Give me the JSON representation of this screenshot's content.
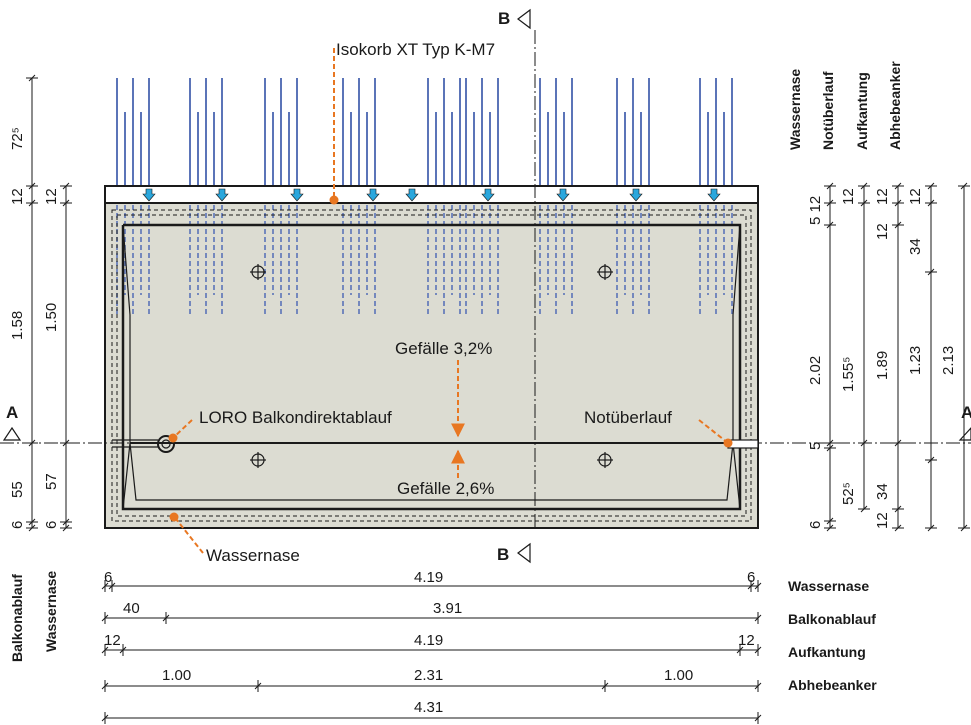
{
  "colors": {
    "slab_fill": "#dcdcd2",
    "rebar": "#5b74b8",
    "arrow": "#2aa7dd",
    "annotation": "#e87722",
    "line": "#1a1a1a"
  },
  "labels": {
    "isokorb": "Isokorb XT Typ K-M7",
    "slope_top": "Gefälle 3,2%",
    "slope_bottom": "Gefälle 2,6%",
    "drain": "LORO Balkondirektablauf",
    "overflow": "Notüberlauf",
    "drip_edge": "Wassernase",
    "section_a": "A",
    "section_b": "B"
  },
  "right_headers": [
    "Wassernase",
    "Notüberlauf",
    "Aufkantung",
    "Abhebeanker"
  ],
  "left_headers": [
    "Balkonablauf",
    "Wassernase"
  ],
  "left_dims": {
    "outer": [
      "72⁵",
      "12",
      "1.58",
      "55",
      "6"
    ],
    "inner": [
      "12",
      "1.50",
      "57",
      "6"
    ]
  },
  "right_dims": {
    "wassernase": [
      "5 12",
      "2.02",
      "5",
      "6"
    ],
    "notueberlauf": [
      "12",
      "1.55⁵",
      "52⁵"
    ],
    "aufkantung": [
      "12",
      "12",
      "1.89",
      "34",
      "12"
    ],
    "abhebeanker": [
      "12",
      "34",
      "1.23",
      "2.13"
    ]
  },
  "bottom_dims": {
    "row1": {
      "label": "Wassernase",
      "values": [
        "6",
        "4.19",
        "6"
      ]
    },
    "row2": {
      "label": "Balkonablauf",
      "values": [
        "40",
        "3.91"
      ]
    },
    "row3": {
      "label": "Aufkantung",
      "values": [
        "12",
        "4.19",
        "12"
      ]
    },
    "row4": {
      "label": "Abhebeanker",
      "values": [
        "1.00",
        "2.31",
        "1.00"
      ]
    },
    "row5": {
      "values": [
        "4.31"
      ]
    }
  }
}
